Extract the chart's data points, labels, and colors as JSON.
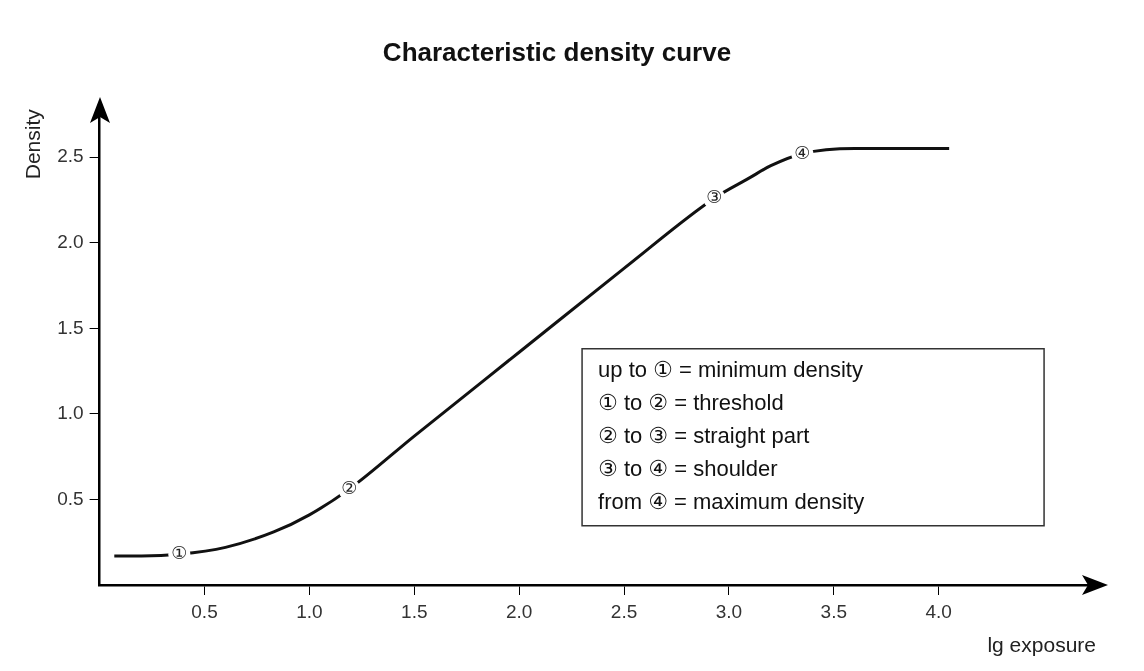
{
  "chart_data": {
    "type": "line",
    "title": "Characteristic density curve",
    "xlabel": "lg exposure",
    "ylabel": "Density",
    "x": [
      0.07,
      0.2,
      0.38,
      0.6,
      0.83,
      1.0,
      1.19,
      1.5,
      2.0,
      2.5,
      2.93,
      3.1,
      3.2,
      3.35,
      3.6,
      4.05
    ],
    "series": [
      {
        "color": "#111111",
        "values": [
          0.17,
          0.17,
          0.18,
          0.22,
          0.31,
          0.41,
          0.56,
          0.87,
          1.36,
          1.85,
          2.26,
          2.38,
          2.45,
          2.52,
          2.55,
          2.55
        ]
      }
    ],
    "xlim": [
      0,
      4.75
    ],
    "ylim": [
      0,
      2.78
    ],
    "xticks": [
      0.5,
      {
        "value": 1,
        "label": "1.0"
      },
      1.5,
      {
        "value": 2,
        "label": "2.0"
      },
      2.5,
      {
        "value": 3,
        "label": "3.0"
      },
      3.5,
      {
        "value": 4,
        "label": "4.0"
      }
    ],
    "yticks": [
      0.5,
      {
        "value": 1,
        "label": "1.0"
      },
      1.5,
      {
        "value": 2,
        "label": "2.0"
      },
      2.5
    ],
    "grid": false,
    "legend": false,
    "marker": "none",
    "line_style": "solid",
    "annotations": [
      {
        "text": "①",
        "x": 0.38,
        "y": 0.18
      },
      {
        "text": "②",
        "x": 1.19,
        "y": 0.56
      },
      {
        "text": "③",
        "x": 2.93,
        "y": 2.26
      },
      {
        "text": "④",
        "x": 3.35,
        "y": 2.52
      },
      "up to ① = minimum density",
      "① to ② = threshold",
      "② to ③ = straight part",
      "③ to ④ = shoulder",
      "from ④ = maximum density"
    ]
  }
}
